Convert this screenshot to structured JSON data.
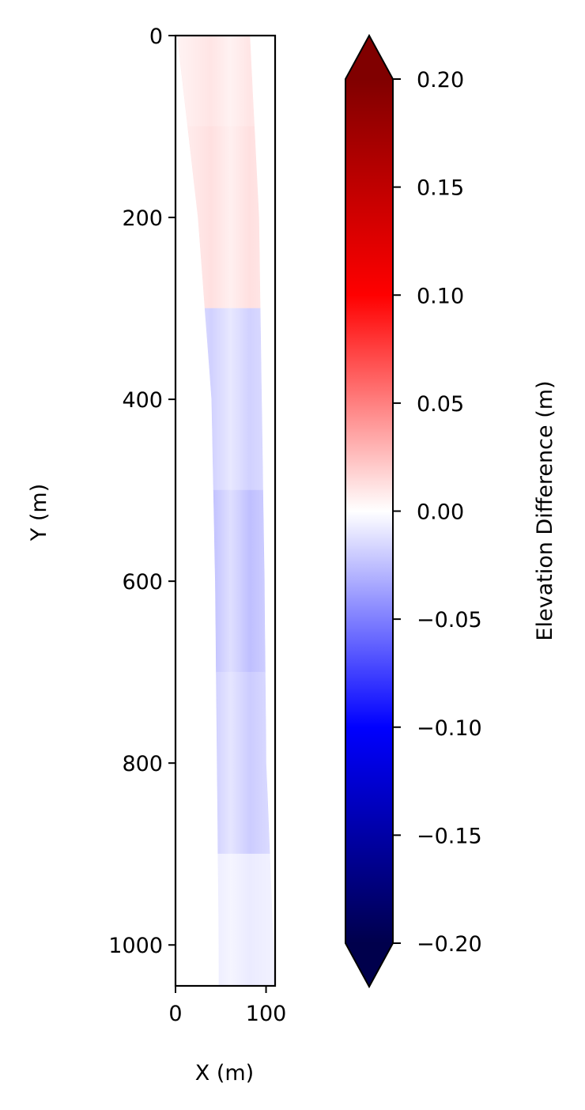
{
  "chart_data": {
    "type": "heatmap",
    "title": "",
    "xlabel": "X (m)",
    "ylabel": "Y (m)",
    "xlim": [
      0,
      110
    ],
    "ylim": [
      1045,
      0
    ],
    "y_inverted": true,
    "x_ticks": [
      0,
      100
    ],
    "x_tick_labels": [
      "0",
      "100"
    ],
    "y_ticks": [
      0,
      200,
      400,
      600,
      800,
      1000
    ],
    "y_tick_labels": [
      "0",
      "200",
      "400",
      "600",
      "800",
      "1000"
    ],
    "grid": false,
    "colormap": "seismic",
    "colorbar": {
      "label": "Elevation Difference (m)",
      "min": -0.2,
      "max": 0.2,
      "extend": "both",
      "ticks": [
        0.2,
        0.15,
        0.1,
        0.05,
        0.0,
        -0.05,
        -0.1,
        -0.15,
        -0.2
      ],
      "tick_labels": [
        "0.20",
        "0.15",
        "0.10",
        "0.05",
        "0.00",
        "−0.05",
        "−0.10",
        "−0.15",
        "−0.20"
      ],
      "colors": {
        "min": "#00004c",
        "low": "#0000ff",
        "mid": "#ffffff",
        "high": "#ff0000",
        "max": "#800000"
      }
    },
    "strip": {
      "description_free": true,
      "profile_x_left": [
        [
          0,
          2
        ],
        [
          200,
          25
        ],
        [
          400,
          40
        ],
        [
          600,
          44
        ],
        [
          800,
          46
        ],
        [
          1000,
          48
        ],
        [
          1045,
          48
        ]
      ],
      "profile_x_right": [
        [
          0,
          82
        ],
        [
          200,
          92
        ],
        [
          400,
          95
        ],
        [
          600,
          98
        ],
        [
          800,
          100
        ],
        [
          1000,
          108
        ],
        [
          1045,
          109
        ]
      ],
      "segments": [
        {
          "y0": 0,
          "y1": 100,
          "value": 0.01
        },
        {
          "y0": 100,
          "y1": 300,
          "value": 0.012
        },
        {
          "y0": 300,
          "y1": 500,
          "value": -0.018
        },
        {
          "y0": 500,
          "y1": 700,
          "value": -0.025
        },
        {
          "y0": 700,
          "y1": 900,
          "value": -0.02
        },
        {
          "y0": 900,
          "y1": 1045,
          "value": -0.008
        }
      ]
    }
  }
}
